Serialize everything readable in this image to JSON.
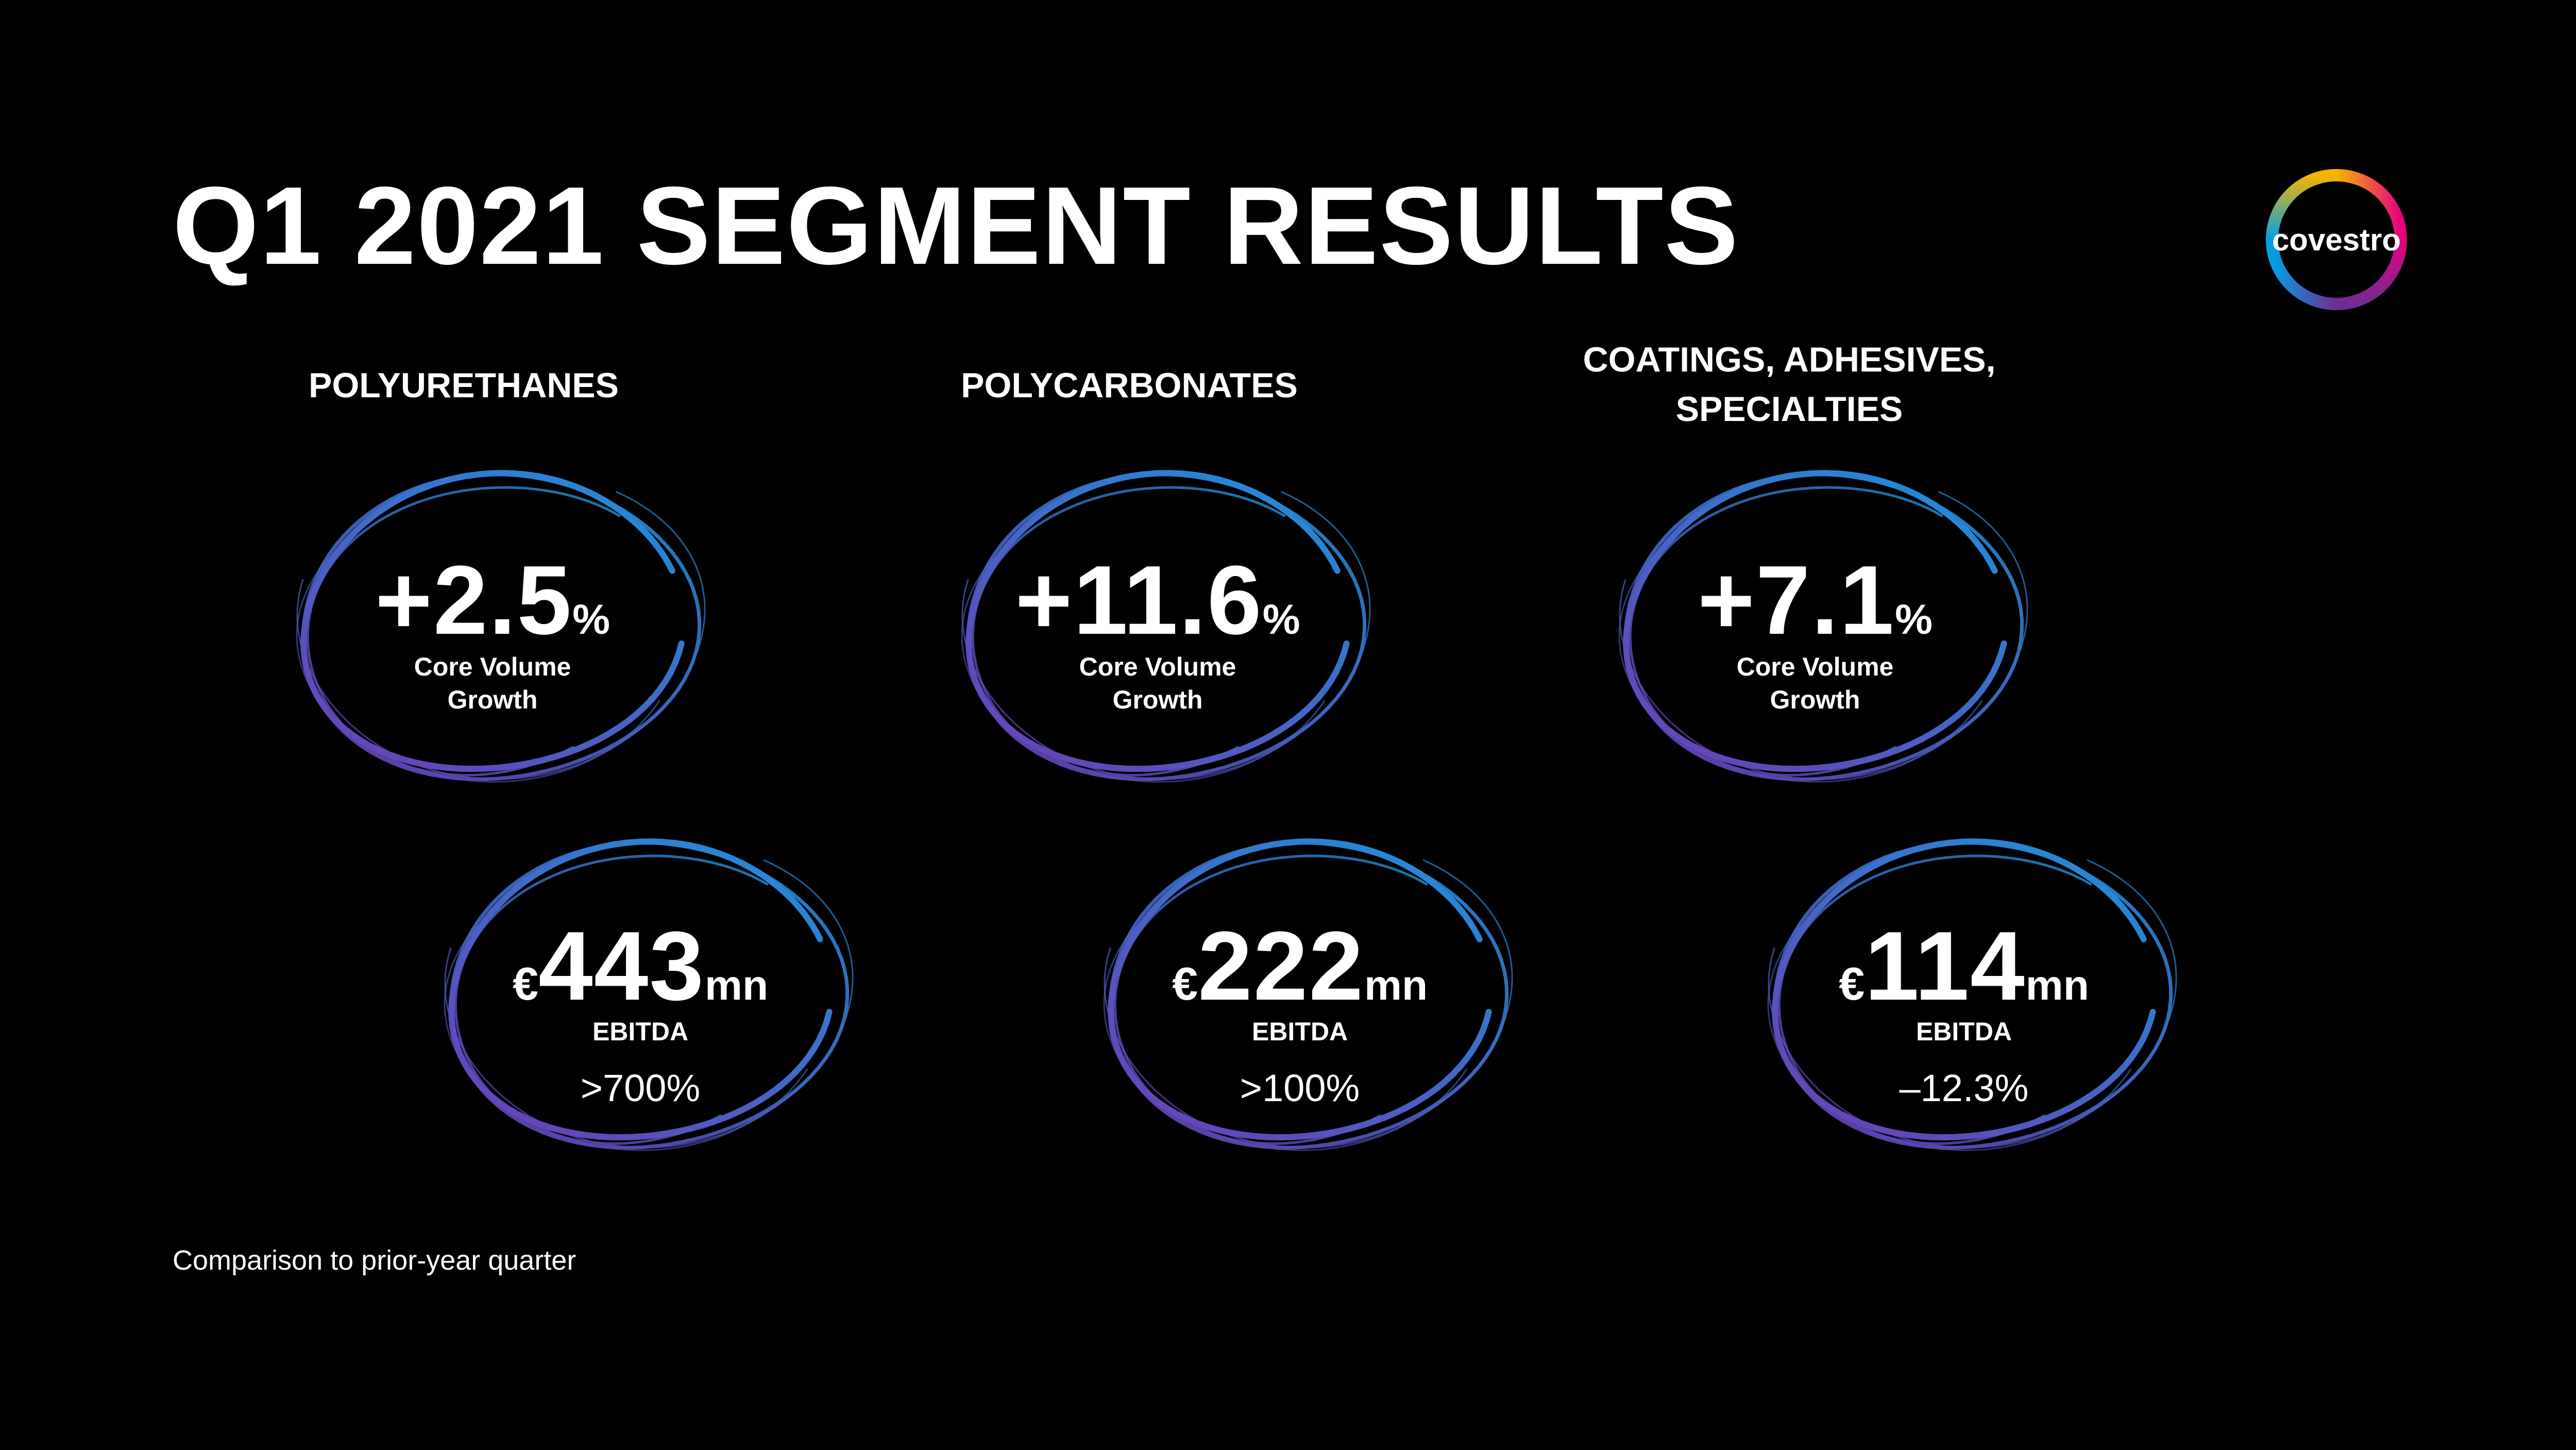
{
  "title": "Q1 2021 SEGMENT RESULTS",
  "logo": {
    "text": "covestro",
    "icon": "covestro-ring-logo"
  },
  "segments": [
    {
      "heading_lines": [
        "POLYURETHANES"
      ],
      "volume": {
        "value": "+2.5",
        "unit": "%",
        "label_lines": [
          "Core Volume",
          "Growth"
        ]
      },
      "ebitda": {
        "currency": "€",
        "value": "443",
        "unit": "mn",
        "label": "EBITDA",
        "change": ">700%"
      }
    },
    {
      "heading_lines": [
        "POLYCARBONATES"
      ],
      "volume": {
        "value": "+11.6",
        "unit": "%",
        "label_lines": [
          "Core Volume",
          "Growth"
        ]
      },
      "ebitda": {
        "currency": "€",
        "value": "222",
        "unit": "mn",
        "label": "EBITDA",
        "change": ">100%"
      }
    },
    {
      "heading_lines": [
        "COATINGS, ADHESIVES,",
        "SPECIALTIES"
      ],
      "volume": {
        "value": "+7.1",
        "unit": "%",
        "label_lines": [
          "Core Volume",
          "Growth"
        ]
      },
      "ebitda": {
        "currency": "€",
        "value": "114",
        "unit": "mn",
        "label": "EBITDA",
        "change": "–12.3%"
      }
    }
  ],
  "footnote": "Comparison to prior-year quarter",
  "colors": {
    "background": "#000000",
    "text": "#ffffff",
    "ring_blue": "#1f8fd8",
    "ring_purple": "#6a3fb5"
  }
}
